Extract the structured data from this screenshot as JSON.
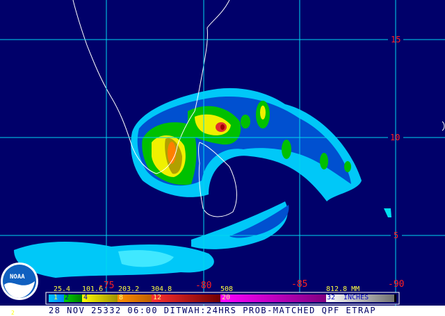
{
  "map": {
    "background_color": "#00006a",
    "grid_color": "#00d8f0",
    "coastline_color": "#ffffff",
    "latitude_labels": [
      "15",
      "10",
      "5"
    ],
    "longitude_labels": [
      "-75",
      "-80",
      "-85",
      "-90"
    ]
  },
  "legend": {
    "mm_labels": [
      "25.4",
      "101.6",
      "203.2",
      "304.8",
      "508",
      "812.8 MM"
    ],
    "inch_labels": [
      "1",
      "2",
      "4",
      "8",
      "12",
      "20",
      "32"
    ],
    "units_label": "INCHES",
    "colors": [
      "#00b0ff",
      "#00c000",
      "#ffff00",
      "#ff9000",
      "#e02020",
      "#ff00ff",
      "#f0f0f0"
    ]
  },
  "footer": {
    "title": "28 NOV 25332 06:00 DITWAH:24HRS PROB-MATCHED QPF ETRAP",
    "corner_mark": "2"
  },
  "logo": {
    "text": "NOAA"
  }
}
